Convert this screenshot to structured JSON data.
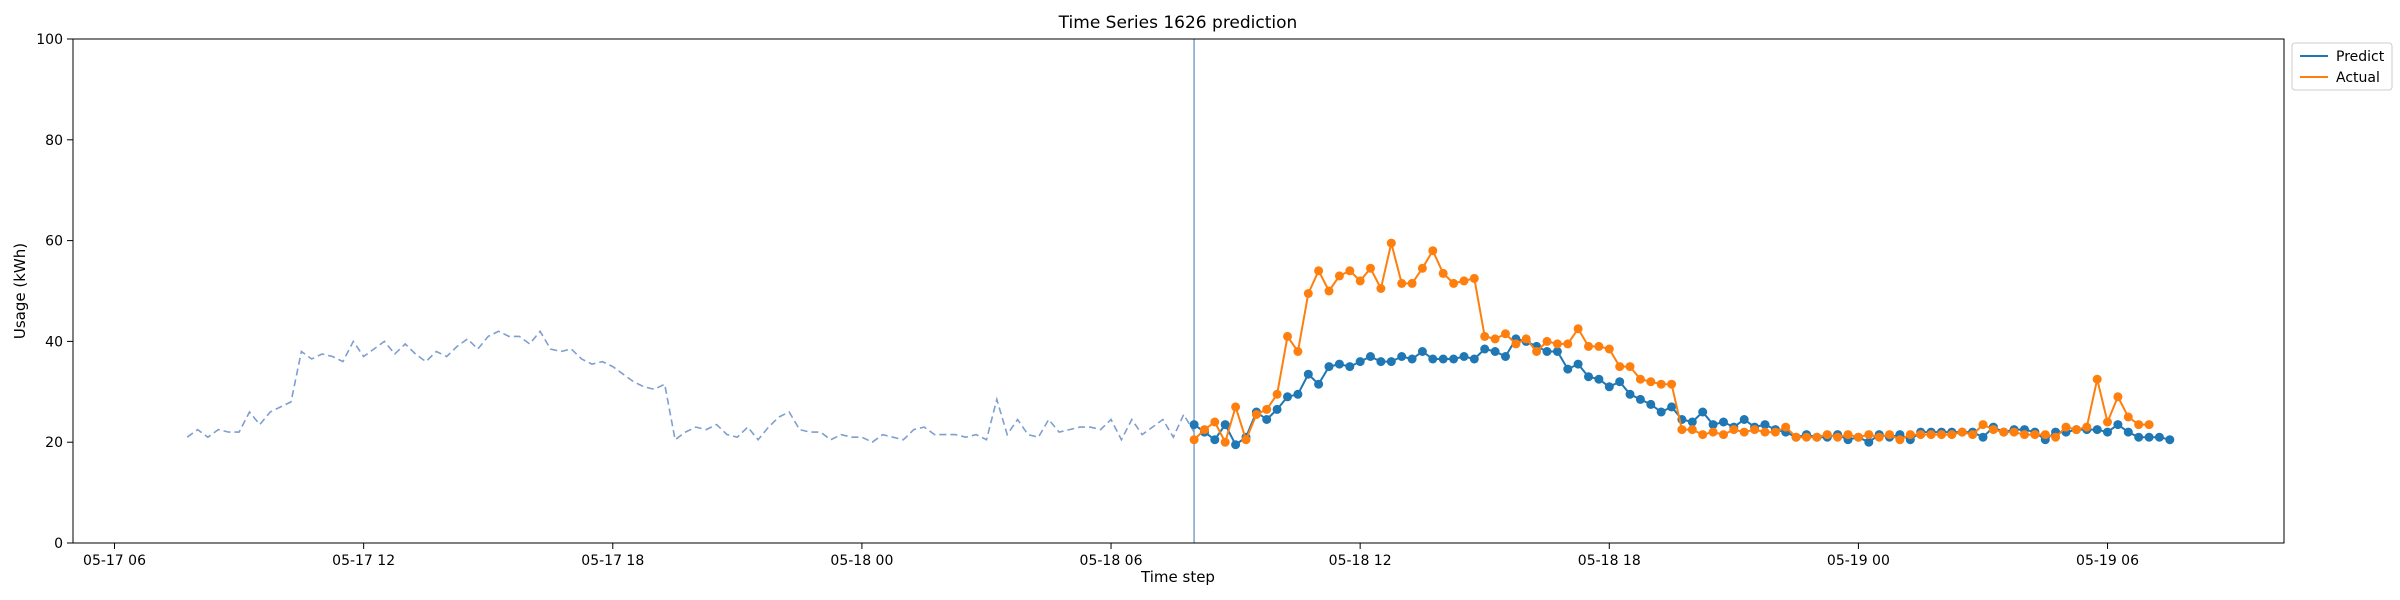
{
  "chart_data": {
    "type": "line",
    "title": "Time Series 1626 prediction",
    "xlabel": "Time step",
    "ylabel": "Usage (kWh)",
    "ylim": [
      0,
      100
    ],
    "xlim": [
      "2025-05-17T05:00",
      "2025-05-19T10:15"
    ],
    "y_ticks": [
      0,
      20,
      40,
      60,
      80,
      100
    ],
    "x_ticks": [
      {
        "value": "2025-05-17T06:00",
        "label": "05-17 06"
      },
      {
        "value": "2025-05-17T12:00",
        "label": "05-17 12"
      },
      {
        "value": "2025-05-17T18:00",
        "label": "05-17 18"
      },
      {
        "value": "2025-05-18T00:00",
        "label": "05-18 00"
      },
      {
        "value": "2025-05-18T06:00",
        "label": "05-18 06"
      },
      {
        "value": "2025-05-18T12:00",
        "label": "05-18 12"
      },
      {
        "value": "2025-05-18T18:00",
        "label": "05-18 18"
      },
      {
        "value": "2025-05-19T00:00",
        "label": "05-19 00"
      },
      {
        "value": "2025-05-19T06:00",
        "label": "05-19 06"
      }
    ],
    "grid": false,
    "legend_position": "upper-right-outside",
    "forecast_start": "2025-05-18T08:00",
    "history": {
      "start": "2025-05-17T07:45",
      "interval_minutes": 15,
      "color": "#7f9fce",
      "style": "dashed",
      "values": [
        21.0,
        22.5,
        21.0,
        22.5,
        22.0,
        22.0,
        26.0,
        23.5,
        26.0,
        27.0,
        28.0,
        38.0,
        36.5,
        37.5,
        37.0,
        36.0,
        40.0,
        37.0,
        38.5,
        40.0,
        37.5,
        39.5,
        37.5,
        36.0,
        38.0,
        37.0,
        39.0,
        40.5,
        38.5,
        41.0,
        42.0,
        41.0,
        41.0,
        39.5,
        42.0,
        38.5,
        38.0,
        38.5,
        36.5,
        35.5,
        36.0,
        35.0,
        33.5,
        32.0,
        31.0,
        30.5,
        31.5,
        20.5,
        22.0,
        23.0,
        22.5,
        23.5,
        21.5,
        21.0,
        23.0,
        20.5,
        23.0,
        25.0,
        26.0,
        22.5,
        22.0,
        22.0,
        20.5,
        21.5,
        21.0,
        21.0,
        20.0,
        21.5,
        21.0,
        20.5,
        22.5,
        23.0,
        21.5,
        21.5,
        21.5,
        21.0,
        21.5,
        20.5,
        28.5,
        21.5,
        24.5,
        21.5,
        21.0,
        24.5,
        22.0,
        22.5,
        23.0,
        23.0,
        22.5,
        24.5,
        20.5,
        24.5,
        21.5,
        23.0,
        24.5,
        21.0,
        25.5,
        22.0
      ]
    },
    "series": [
      {
        "name": "Predict",
        "color": "#1f77b4",
        "start": "2025-05-18T08:00",
        "interval_minutes": 15,
        "values": [
          23.5,
          22.0,
          20.5,
          23.5,
          19.5,
          21.0,
          26.0,
          24.5,
          26.5,
          29.0,
          29.5,
          33.5,
          31.5,
          35.0,
          35.5,
          35.0,
          36.0,
          37.0,
          36.0,
          36.0,
          37.0,
          36.5,
          38.0,
          36.5,
          36.5,
          36.5,
          37.0,
          36.5,
          38.5,
          38.0,
          37.0,
          40.5,
          40.0,
          39.0,
          38.0,
          38.0,
          34.5,
          35.5,
          33.0,
          32.5,
          31.0,
          32.0,
          29.5,
          28.5,
          27.5,
          26.0,
          27.0,
          24.5,
          24.0,
          26.0,
          23.5,
          24.0,
          23.0,
          24.5,
          23.0,
          23.5,
          22.5,
          22.0,
          21.0,
          21.5,
          21.0,
          21.0,
          21.5,
          20.5,
          21.0,
          20.0,
          21.5,
          21.0,
          21.5,
          20.5,
          22.0,
          22.0,
          22.0,
          22.0,
          22.0,
          22.0,
          21.0,
          23.0,
          22.0,
          22.5,
          22.5,
          22.0,
          20.5,
          22.0,
          22.0,
          22.5,
          22.5,
          22.5,
          22.0,
          23.5,
          22.0,
          21.0,
          21.0,
          21.0,
          20.5
        ]
      },
      {
        "name": "Actual",
        "color": "#ff7f0e",
        "start": "2025-05-18T08:00",
        "interval_minutes": 15,
        "values": [
          20.5,
          22.5,
          24.0,
          20.0,
          27.0,
          20.5,
          25.5,
          26.5,
          29.5,
          41.0,
          38.0,
          49.5,
          54.0,
          50.0,
          53.0,
          54.0,
          52.0,
          54.5,
          50.5,
          59.5,
          51.5,
          51.5,
          54.5,
          58.0,
          53.5,
          51.5,
          52.0,
          52.5,
          41.0,
          40.5,
          41.5,
          39.5,
          40.5,
          38.0,
          40.0,
          39.5,
          39.5,
          42.5,
          39.0,
          39.0,
          38.5,
          35.0,
          35.0,
          32.5,
          32.0,
          31.5,
          31.5,
          22.5,
          22.5,
          21.5,
          22.0,
          21.5,
          22.5,
          22.0,
          22.5,
          22.0,
          22.0,
          23.0,
          21.0,
          21.0,
          21.0,
          21.5,
          21.0,
          21.5,
          21.0,
          21.5,
          21.0,
          21.5,
          20.5,
          21.5,
          21.5,
          21.5,
          21.5,
          21.5,
          22.0,
          21.5,
          23.5,
          22.5,
          22.0,
          22.0,
          21.5,
          21.5,
          21.5,
          21.0,
          23.0,
          22.5,
          23.0,
          32.5,
          24.0,
          29.0,
          25.0,
          23.5,
          23.5
        ]
      }
    ]
  }
}
